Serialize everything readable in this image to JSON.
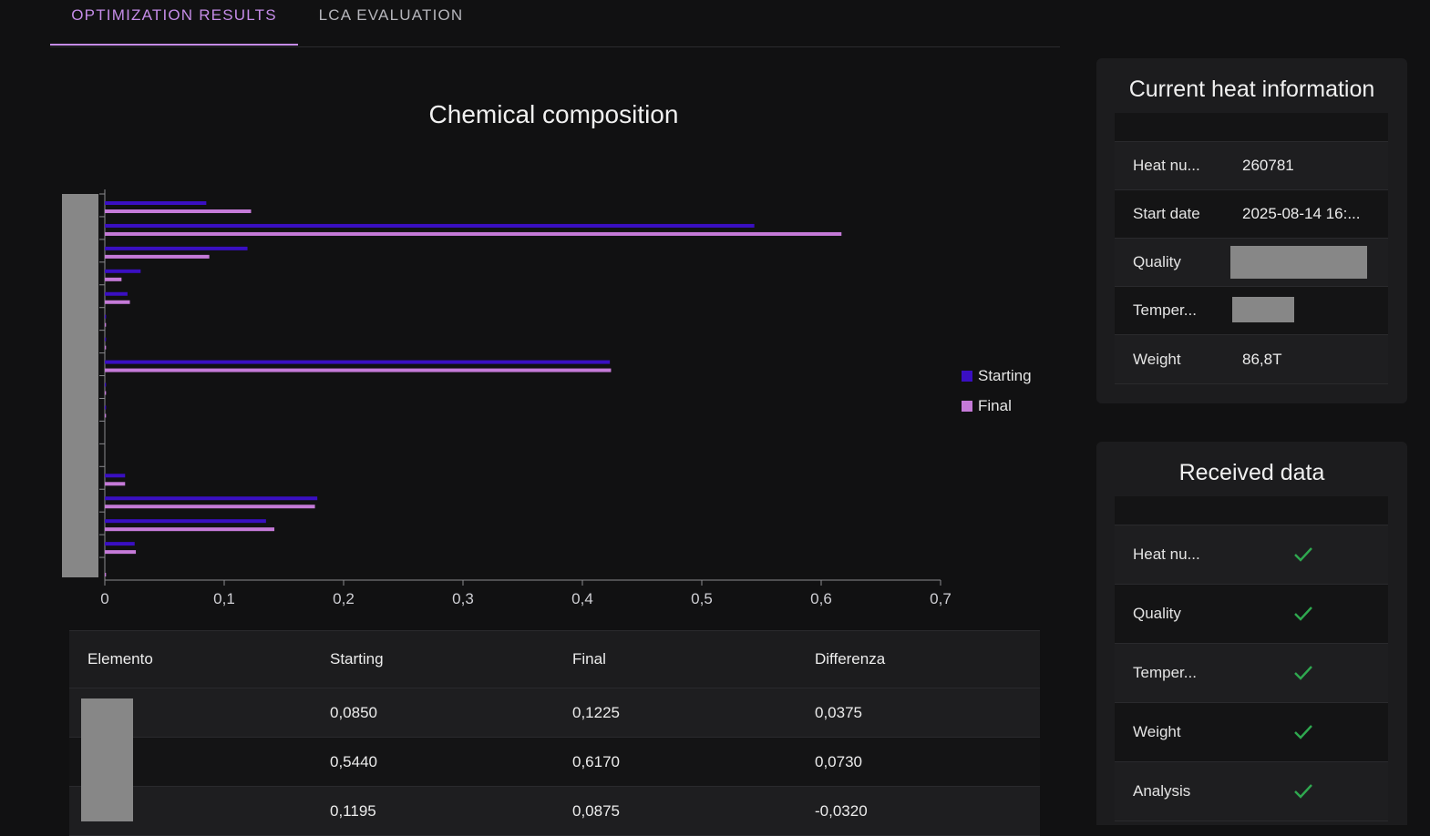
{
  "tabs": [
    {
      "label": "OPTIMIZATION RESULTS",
      "active": true
    },
    {
      "label": "LCA EVALUATION",
      "active": false
    }
  ],
  "colors": {
    "starting": "#3a0fc2",
    "final": "#c57ad8",
    "accent": "#c58ce8",
    "check": "#2fa84f"
  },
  "chart_data": {
    "type": "bar",
    "orientation": "horizontal",
    "title": "Chemical composition",
    "legend": {
      "position": "right"
    },
    "x_ticks": [
      "0",
      "0,1",
      "0,2",
      "0,3",
      "0,4",
      "0,5",
      "0,6",
      "0,7"
    ],
    "xlim": [
      0,
      0.7
    ],
    "series": [
      {
        "name": "Starting",
        "values": [
          0.085,
          0.544,
          0.1195,
          0.03,
          0.019,
          0.001,
          0.001,
          0.423,
          0.001,
          0.001,
          0.0,
          0.0,
          0.017,
          0.178,
          0.135,
          0.025,
          0.0
        ]
      },
      {
        "name": "Final",
        "values": [
          0.1225,
          0.617,
          0.0875,
          0.014,
          0.021,
          0.001,
          0.001,
          0.424,
          0.001,
          0.001,
          0.0,
          0.0,
          0.017,
          0.176,
          0.142,
          0.026,
          0.001
        ]
      }
    ]
  },
  "table": {
    "headers": [
      "Elemento",
      "Starting",
      "Final",
      "Differenza"
    ],
    "rows": [
      [
        "",
        "0,0850",
        "0,1225",
        "0,0375"
      ],
      [
        "",
        "0,5440",
        "0,6170",
        "0,0730"
      ],
      [
        "",
        "0,1195",
        "0,0875",
        "-0,0320"
      ]
    ]
  },
  "heat_info": {
    "title": "Current heat information",
    "rows": [
      {
        "label": "Heat nu...",
        "value": "260781"
      },
      {
        "label": "Start date",
        "value": "2025-08-14 16:..."
      },
      {
        "label": "Quality",
        "value": ""
      },
      {
        "label": "Temper...",
        "value": ""
      },
      {
        "label": "Weight",
        "value": "86,8T"
      }
    ]
  },
  "received": {
    "title": "Received data",
    "rows": [
      {
        "label": "Heat nu...",
        "icon": "check-icon"
      },
      {
        "label": "Quality",
        "icon": "check-icon"
      },
      {
        "label": "Temper...",
        "icon": "check-icon"
      },
      {
        "label": "Weight",
        "icon": "check-icon"
      },
      {
        "label": "Analysis",
        "icon": "check-icon"
      }
    ]
  }
}
